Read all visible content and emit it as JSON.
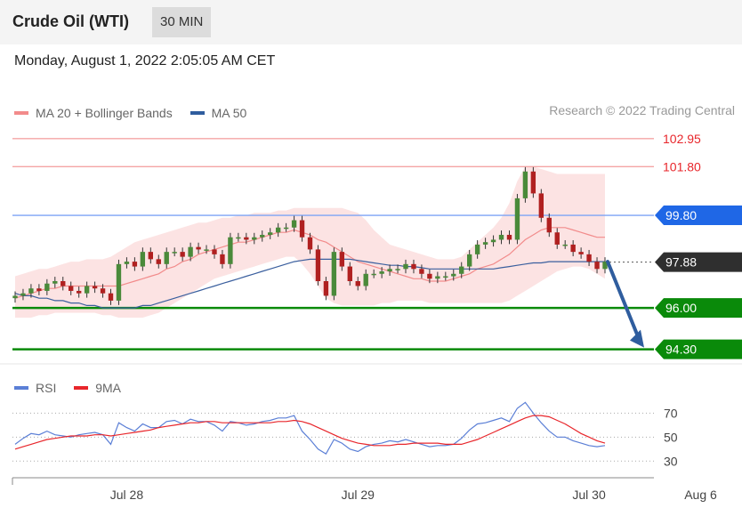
{
  "header": {
    "instrument": "Crude Oil (WTI)",
    "timeframe": "30 MIN",
    "timestamp": "Monday, August 1, 2022 2:05:05 AM CET"
  },
  "legend": [
    {
      "label": "MA 20 + Bollinger Bands",
      "color": "#f28b8b"
    },
    {
      "label": "MA 50",
      "color": "#2f5d9e"
    }
  ],
  "credit": "Research © 2022 Trading Central",
  "rsi_legend": [
    {
      "label": "RSI",
      "color": "#5b7fd6"
    },
    {
      "label": "9MA",
      "color": "#e8262b"
    }
  ],
  "chart_data": {
    "type": "line",
    "title": "",
    "price": {
      "levels": [
        {
          "value": 102.95,
          "label": "102.95",
          "style": "red-line",
          "color": "#f5a5a5",
          "tag_color": "#e8262b"
        },
        {
          "value": 101.8,
          "label": "101.80",
          "style": "red-line",
          "color": "#f5a5a5",
          "tag_color": "#e8262b"
        },
        {
          "value": 99.8,
          "label": "99.80",
          "style": "blue-tag",
          "color": "#7da4f5",
          "tag_color": "#1f67e6"
        },
        {
          "value": 97.88,
          "label": "97.88",
          "style": "price-tag",
          "color": "#555555",
          "tag_color": "#2f2f2f"
        },
        {
          "value": 96.0,
          "label": "96.00",
          "style": "green-tag",
          "color": "#0a8a0a",
          "tag_color": "#0a8a0a"
        },
        {
          "value": 94.3,
          "label": "94.30",
          "style": "green-tag",
          "color": "#0a8a0a",
          "tag_color": "#0a8a0a"
        }
      ],
      "ylim": [
        93.85,
        103.6
      ],
      "close": [
        96.5,
        96.6,
        96.8,
        96.7,
        97.0,
        97.1,
        96.9,
        96.7,
        96.6,
        96.9,
        96.8,
        96.6,
        96.3,
        97.8,
        97.9,
        97.7,
        98.3,
        98.0,
        97.8,
        98.3,
        98.3,
        98.1,
        98.5,
        98.4,
        98.4,
        98.2,
        97.8,
        98.9,
        98.9,
        98.8,
        98.9,
        99.0,
        99.1,
        99.3,
        99.3,
        99.6,
        98.9,
        98.4,
        97.1,
        96.5,
        98.3,
        97.7,
        97.1,
        96.9,
        97.4,
        97.4,
        97.5,
        97.6,
        97.6,
        97.8,
        97.6,
        97.4,
        97.2,
        97.3,
        97.3,
        97.4,
        97.7,
        98.2,
        98.6,
        98.7,
        98.8,
        99.0,
        98.8,
        100.5,
        101.6,
        100.7,
        99.7,
        99.1,
        98.6,
        98.6,
        98.3,
        98.2,
        97.9,
        97.6,
        97.9
      ]
    },
    "ma20": [
      96.4,
      96.5,
      96.6,
      96.7,
      96.8,
      96.8,
      96.9,
      96.9,
      96.9,
      96.9,
      96.9,
      96.9,
      96.9,
      96.9,
      97.0,
      97.1,
      97.2,
      97.3,
      97.4,
      97.6,
      97.7,
      97.9,
      98.0,
      98.2,
      98.3,
      98.4,
      98.5,
      98.6,
      98.7,
      98.7,
      98.8,
      98.9,
      99.0,
      99.1,
      99.1,
      99.2,
      99.1,
      99.0,
      98.8,
      98.7,
      98.5,
      98.3,
      98.1,
      97.9,
      97.8,
      97.7,
      97.6,
      97.5,
      97.4,
      97.3,
      97.2,
      97.2,
      97.1,
      97.1,
      97.1,
      97.2,
      97.3,
      97.4,
      97.6,
      97.7,
      97.8,
      98.0,
      98.2,
      98.5,
      98.8,
      99.0,
      99.2,
      99.3,
      99.3,
      99.3,
      99.2,
      99.1,
      99.0,
      98.9,
      98.9
    ],
    "bb_upper": [
      97.3,
      97.4,
      97.5,
      97.6,
      97.6,
      97.7,
      97.8,
      97.9,
      97.9,
      98.0,
      98.0,
      98.0,
      98.1,
      98.3,
      98.5,
      98.7,
      98.8,
      98.9,
      99.0,
      99.1,
      99.2,
      99.3,
      99.4,
      99.5,
      99.5,
      99.6,
      99.7,
      99.7,
      99.8,
      99.8,
      99.9,
      99.9,
      99.9,
      100.0,
      100.0,
      100.1,
      100.1,
      100.1,
      100.1,
      100.1,
      100.1,
      100.1,
      100.0,
      99.9,
      99.6,
      99.2,
      98.9,
      98.6,
      98.5,
      98.4,
      98.3,
      98.2,
      98.1,
      98.0,
      98.0,
      98.0,
      98.1,
      98.4,
      98.7,
      99.0,
      99.3,
      99.7,
      100.3,
      101.2,
      101.8,
      101.8,
      101.7,
      101.6,
      101.5,
      101.5,
      101.5,
      101.5,
      101.5,
      101.5,
      101.5
    ],
    "bb_lower": [
      95.6,
      95.6,
      95.6,
      95.7,
      95.7,
      95.8,
      95.8,
      95.8,
      95.8,
      95.8,
      95.8,
      95.7,
      95.7,
      95.6,
      95.6,
      95.6,
      95.6,
      95.7,
      95.8,
      96.0,
      96.2,
      96.4,
      96.6,
      96.8,
      97.0,
      97.2,
      97.3,
      97.4,
      97.5,
      97.6,
      97.7,
      97.8,
      97.9,
      98.0,
      98.1,
      98.1,
      97.8,
      97.4,
      96.9,
      96.4,
      96.2,
      96.1,
      96.1,
      96.1,
      96.1,
      96.1,
      96.2,
      96.2,
      96.3,
      96.3,
      96.3,
      96.3,
      96.2,
      96.2,
      96.2,
      96.2,
      96.2,
      96.2,
      96.2,
      96.2,
      96.2,
      96.2,
      96.3,
      96.5,
      96.7,
      96.9,
      97.1,
      97.3,
      97.5,
      97.6,
      97.7,
      97.7,
      97.6,
      97.4,
      97.2
    ],
    "ma50": [
      96.6,
      96.5,
      96.5,
      96.4,
      96.4,
      96.3,
      96.3,
      96.2,
      96.2,
      96.1,
      96.1,
      96.0,
      96.0,
      96.0,
      96.0,
      96.0,
      96.1,
      96.1,
      96.2,
      96.3,
      96.4,
      96.5,
      96.6,
      96.7,
      96.8,
      96.9,
      97.0,
      97.1,
      97.2,
      97.3,
      97.4,
      97.5,
      97.6,
      97.7,
      97.8,
      97.9,
      97.95,
      98.0,
      98.0,
      98.0,
      98.0,
      98.0,
      98.0,
      97.95,
      97.9,
      97.85,
      97.8,
      97.75,
      97.75,
      97.7,
      97.7,
      97.65,
      97.6,
      97.6,
      97.6,
      97.6,
      97.6,
      97.6,
      97.6,
      97.6,
      97.6,
      97.65,
      97.7,
      97.75,
      97.8,
      97.85,
      97.85,
      97.9,
      97.9,
      97.9,
      97.9,
      97.9,
      97.9,
      97.9,
      97.9
    ],
    "forecast_arrow": {
      "from": 97.9,
      "to": 94.3
    },
    "rsi": {
      "levels": [
        70,
        50,
        30
      ],
      "ylim": [
        25,
        77
      ],
      "rsi": [
        44,
        49,
        53,
        52,
        55,
        52,
        51,
        50,
        52,
        53,
        54,
        52,
        44,
        62,
        58,
        55,
        61,
        58,
        58,
        63,
        64,
        61,
        65,
        63,
        63,
        60,
        55,
        63,
        62,
        60,
        61,
        63,
        64,
        66,
        66,
        68,
        55,
        48,
        40,
        36,
        48,
        45,
        40,
        38,
        42,
        44,
        45,
        47,
        46,
        48,
        46,
        44,
        42,
        43,
        43,
        44,
        49,
        56,
        61,
        62,
        64,
        66,
        63,
        74,
        79,
        70,
        62,
        55,
        50,
        50,
        47,
        45,
        43,
        42,
        43
      ],
      "ma9": [
        40,
        42,
        44,
        46,
        48,
        49,
        50,
        51,
        51,
        51,
        52,
        52,
        51,
        52,
        53,
        54,
        55,
        56,
        58,
        59,
        60,
        61,
        62,
        62,
        63,
        63,
        62,
        62,
        62,
        62,
        62,
        62,
        62,
        63,
        63,
        64,
        63,
        61,
        58,
        55,
        52,
        49,
        47,
        45,
        44,
        43,
        43,
        43,
        44,
        44,
        45,
        45,
        45,
        45,
        44,
        44,
        44,
        46,
        48,
        51,
        54,
        57,
        60,
        63,
        66,
        68,
        68,
        67,
        64,
        61,
        57,
        53,
        50,
        47,
        45
      ]
    },
    "x_ticks": [
      {
        "label": "Jul 28",
        "index": 14
      },
      {
        "label": "Jul 29",
        "index": 43
      },
      {
        "label": "Jul 30",
        "index": 72
      },
      {
        "label": "Aug 6",
        "index": 86
      }
    ]
  }
}
